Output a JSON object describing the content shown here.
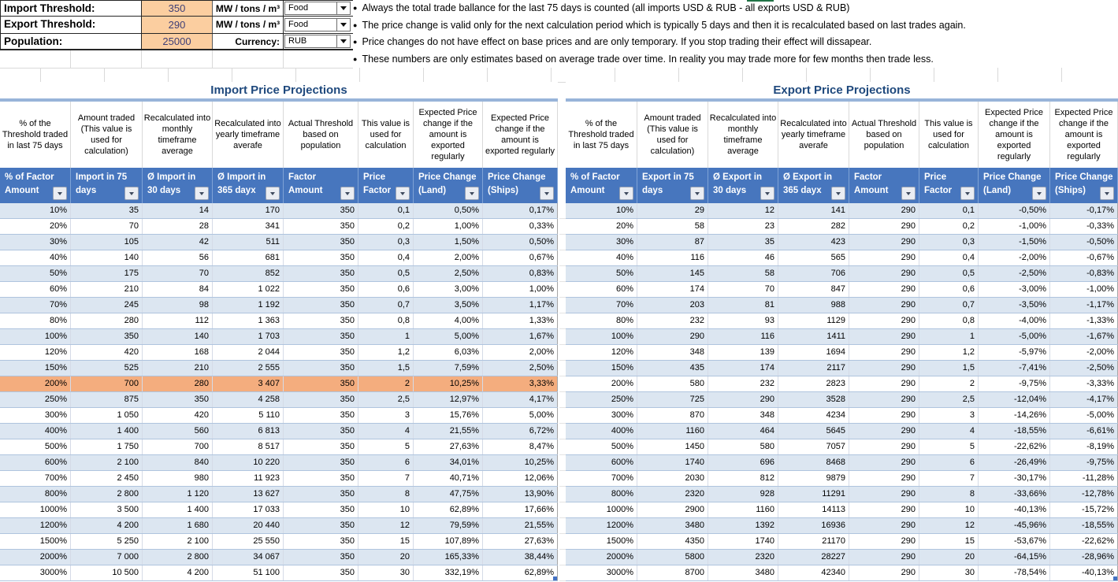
{
  "colors": {
    "header_blue": "#4776BE",
    "band_blue": "#DCE6F1",
    "highlight_orange": "#F4AD7E",
    "input_orange": "#FBCEA0",
    "title_navy": "#1F497D",
    "underline_blue": "#98B4D9"
  },
  "controls": {
    "rows": [
      {
        "label": "Import Threshold:",
        "value": "350",
        "unit": "MW / tons / m³",
        "dropdown": "Food"
      },
      {
        "label": "Export Threshold:",
        "value": "290",
        "unit": "MW / tons / m³",
        "dropdown": "Food"
      },
      {
        "label": "Population:",
        "value": "25000",
        "unit": "Currency:",
        "dropdown": "RUB"
      }
    ]
  },
  "notes": [
    "Always the total trade ballance for the last 75 days is counted (all imports USD & RUB - all exports USD & RUB)",
    "The price change is valid only for the next calculation period which is typically 5 days and then it is recalculated based on last trades again.",
    "Price changes do not have effect on base prices and are only temporary. If you stop trading their effect will dissapear.",
    "These numbers are only estimates based on average trade over time. In reality you may trade more for few months then trade less."
  ],
  "import_table": {
    "title": "Import Price Projections",
    "descriptions": [
      "% of the Threshold traded in last 75 days",
      "Amount traded (This value is used for calculation)",
      "Recalculated into monthly timeframe average",
      "Recalculated into yearly timeframe averafe",
      "Actual Threshold based on population",
      "This value is used for calculation",
      "Expected Price change if the amount is exported regularly",
      "Expected Price change if the amount is exported regularly"
    ],
    "columns": [
      {
        "top": "% of Factor",
        "bottom": "Amount"
      },
      {
        "top": "Import in 75",
        "bottom": "days"
      },
      {
        "top": "Ø Import in",
        "bottom": "30 days"
      },
      {
        "top": "Ø Import in",
        "bottom": "365 dayx"
      },
      {
        "top": "Factor",
        "bottom": "Amount"
      },
      {
        "top": "Price",
        "bottom": "Factor"
      },
      {
        "top": "Price Change",
        "bottom": "(Land)"
      },
      {
        "top": "Price Change",
        "bottom": "(Ships)"
      }
    ],
    "highlight_row": 11,
    "rows": [
      [
        "10%",
        "35",
        "14",
        "170",
        "350",
        "0,1",
        "0,50%",
        "0,17%"
      ],
      [
        "20%",
        "70",
        "28",
        "341",
        "350",
        "0,2",
        "1,00%",
        "0,33%"
      ],
      [
        "30%",
        "105",
        "42",
        "511",
        "350",
        "0,3",
        "1,50%",
        "0,50%"
      ],
      [
        "40%",
        "140",
        "56",
        "681",
        "350",
        "0,4",
        "2,00%",
        "0,67%"
      ],
      [
        "50%",
        "175",
        "70",
        "852",
        "350",
        "0,5",
        "2,50%",
        "0,83%"
      ],
      [
        "60%",
        "210",
        "84",
        "1 022",
        "350",
        "0,6",
        "3,00%",
        "1,00%"
      ],
      [
        "70%",
        "245",
        "98",
        "1 192",
        "350",
        "0,7",
        "3,50%",
        "1,17%"
      ],
      [
        "80%",
        "280",
        "112",
        "1 363",
        "350",
        "0,8",
        "4,00%",
        "1,33%"
      ],
      [
        "100%",
        "350",
        "140",
        "1 703",
        "350",
        "1",
        "5,00%",
        "1,67%"
      ],
      [
        "120%",
        "420",
        "168",
        "2 044",
        "350",
        "1,2",
        "6,03%",
        "2,00%"
      ],
      [
        "150%",
        "525",
        "210",
        "2 555",
        "350",
        "1,5",
        "7,59%",
        "2,50%"
      ],
      [
        "200%",
        "700",
        "280",
        "3 407",
        "350",
        "2",
        "10,25%",
        "3,33%"
      ],
      [
        "250%",
        "875",
        "350",
        "4 258",
        "350",
        "2,5",
        "12,97%",
        "4,17%"
      ],
      [
        "300%",
        "1 050",
        "420",
        "5 110",
        "350",
        "3",
        "15,76%",
        "5,00%"
      ],
      [
        "400%",
        "1 400",
        "560",
        "6 813",
        "350",
        "4",
        "21,55%",
        "6,72%"
      ],
      [
        "500%",
        "1 750",
        "700",
        "8 517",
        "350",
        "5",
        "27,63%",
        "8,47%"
      ],
      [
        "600%",
        "2 100",
        "840",
        "10 220",
        "350",
        "6",
        "34,01%",
        "10,25%"
      ],
      [
        "700%",
        "2 450",
        "980",
        "11 923",
        "350",
        "7",
        "40,71%",
        "12,06%"
      ],
      [
        "800%",
        "2 800",
        "1 120",
        "13 627",
        "350",
        "8",
        "47,75%",
        "13,90%"
      ],
      [
        "1000%",
        "3 500",
        "1 400",
        "17 033",
        "350",
        "10",
        "62,89%",
        "17,66%"
      ],
      [
        "1200%",
        "4 200",
        "1 680",
        "20 440",
        "350",
        "12",
        "79,59%",
        "21,55%"
      ],
      [
        "1500%",
        "5 250",
        "2 100",
        "25 550",
        "350",
        "15",
        "107,89%",
        "27,63%"
      ],
      [
        "2000%",
        "7 000",
        "2 800",
        "34 067",
        "350",
        "20",
        "165,33%",
        "38,44%"
      ],
      [
        "3000%",
        "10 500",
        "4 200",
        "51 100",
        "350",
        "30",
        "332,19%",
        "62,89%"
      ]
    ]
  },
  "export_table": {
    "title": "Export Price Projections",
    "descriptions": [
      "% of the Threshold traded in last 75 days",
      "Amount traded (This value is used for calculation)",
      "Recalculated into monthly timeframe average",
      "Recalculated into yearly timeframe averafe",
      "Actual Threshold based on population",
      "This value is used for calculation",
      "Expected Price change if the amount is exported regularly",
      "Expected Price change if the amount is exported regularly"
    ],
    "columns": [
      {
        "top": "% of Factor",
        "bottom": "Amount"
      },
      {
        "top": "Export in 75",
        "bottom": "days"
      },
      {
        "top": "Ø Export in",
        "bottom": "30 days"
      },
      {
        "top": "Ø Export in",
        "bottom": "365 dayx"
      },
      {
        "top": "Factor",
        "bottom": "Amount"
      },
      {
        "top": "Price",
        "bottom": "Factor"
      },
      {
        "top": "Price Change",
        "bottom": "(Land)"
      },
      {
        "top": "Price Change",
        "bottom": "(Ships)"
      }
    ],
    "highlight_row": -1,
    "rows": [
      [
        "10%",
        "29",
        "12",
        "141",
        "290",
        "0,1",
        "-0,50%",
        "-0,17%"
      ],
      [
        "20%",
        "58",
        "23",
        "282",
        "290",
        "0,2",
        "-1,00%",
        "-0,33%"
      ],
      [
        "30%",
        "87",
        "35",
        "423",
        "290",
        "0,3",
        "-1,50%",
        "-0,50%"
      ],
      [
        "40%",
        "116",
        "46",
        "565",
        "290",
        "0,4",
        "-2,00%",
        "-0,67%"
      ],
      [
        "50%",
        "145",
        "58",
        "706",
        "290",
        "0,5",
        "-2,50%",
        "-0,83%"
      ],
      [
        "60%",
        "174",
        "70",
        "847",
        "290",
        "0,6",
        "-3,00%",
        "-1,00%"
      ],
      [
        "70%",
        "203",
        "81",
        "988",
        "290",
        "0,7",
        "-3,50%",
        "-1,17%"
      ],
      [
        "80%",
        "232",
        "93",
        "1129",
        "290",
        "0,8",
        "-4,00%",
        "-1,33%"
      ],
      [
        "100%",
        "290",
        "116",
        "1411",
        "290",
        "1",
        "-5,00%",
        "-1,67%"
      ],
      [
        "120%",
        "348",
        "139",
        "1694",
        "290",
        "1,2",
        "-5,97%",
        "-2,00%"
      ],
      [
        "150%",
        "435",
        "174",
        "2117",
        "290",
        "1,5",
        "-7,41%",
        "-2,50%"
      ],
      [
        "200%",
        "580",
        "232",
        "2823",
        "290",
        "2",
        "-9,75%",
        "-3,33%"
      ],
      [
        "250%",
        "725",
        "290",
        "3528",
        "290",
        "2,5",
        "-12,04%",
        "-4,17%"
      ],
      [
        "300%",
        "870",
        "348",
        "4234",
        "290",
        "3",
        "-14,26%",
        "-5,00%"
      ],
      [
        "400%",
        "1160",
        "464",
        "5645",
        "290",
        "4",
        "-18,55%",
        "-6,61%"
      ],
      [
        "500%",
        "1450",
        "580",
        "7057",
        "290",
        "5",
        "-22,62%",
        "-8,19%"
      ],
      [
        "600%",
        "1740",
        "696",
        "8468",
        "290",
        "6",
        "-26,49%",
        "-9,75%"
      ],
      [
        "700%",
        "2030",
        "812",
        "9879",
        "290",
        "7",
        "-30,17%",
        "-11,28%"
      ],
      [
        "800%",
        "2320",
        "928",
        "11291",
        "290",
        "8",
        "-33,66%",
        "-12,78%"
      ],
      [
        "1000%",
        "2900",
        "1160",
        "14113",
        "290",
        "10",
        "-40,13%",
        "-15,72%"
      ],
      [
        "1200%",
        "3480",
        "1392",
        "16936",
        "290",
        "12",
        "-45,96%",
        "-18,55%"
      ],
      [
        "1500%",
        "4350",
        "1740",
        "21170",
        "290",
        "15",
        "-53,67%",
        "-22,62%"
      ],
      [
        "2000%",
        "5800",
        "2320",
        "28227",
        "290",
        "20",
        "-64,15%",
        "-28,96%"
      ],
      [
        "3000%",
        "8700",
        "3480",
        "42340",
        "290",
        "30",
        "-78,54%",
        "-40,13%"
      ]
    ]
  }
}
